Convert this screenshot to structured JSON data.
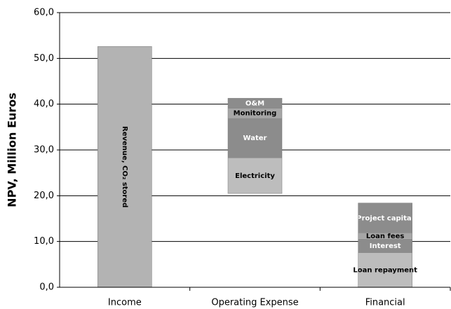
{
  "chart_data": {
    "type": "waterfall",
    "y_axis_label": "NPV, Million Euros",
    "ylim": [
      0,
      60
    ],
    "yticks": [
      {
        "value": 0,
        "label": "0,0"
      },
      {
        "value": 10,
        "label": "10,0"
      },
      {
        "value": 20,
        "label": "20,0"
      },
      {
        "value": 30,
        "label": "30,0"
      },
      {
        "value": 40,
        "label": "40,0"
      },
      {
        "value": 50,
        "label": "50,0"
      },
      {
        "value": 60,
        "label": "60,0"
      }
    ],
    "grid": true,
    "bars": [
      {
        "category": "Income",
        "base": 0,
        "segments": [
          {
            "name": "Revenue, CO₂ stored",
            "value": 52.6,
            "color": "#b3b3b3",
            "label_color": "#000000",
            "label_rotated": true
          }
        ]
      },
      {
        "category": "Operating Expense",
        "base": 20.5,
        "segments": [
          {
            "name": "Electricity",
            "value": 7.7,
            "color": "#bdbdbd",
            "label_color": "#000000"
          },
          {
            "name": "Water",
            "value": 8.8,
            "color": "#8c8c8c",
            "label_color": "#ffffff"
          },
          {
            "name": "Monitoring",
            "value": 2.0,
            "color": "#a6a6a6",
            "label_color": "#000000"
          },
          {
            "name": "O&M",
            "value": 2.3,
            "color": "#8c8c8c",
            "label_color": "#ffffff"
          }
        ]
      },
      {
        "category": "Financial",
        "base": 0,
        "segments": [
          {
            "name": "Loan repayment",
            "value": 7.5,
            "color": "#bdbdbd",
            "label_color": "#000000"
          },
          {
            "name": "Interest",
            "value": 3.1,
            "color": "#8c8c8c",
            "label_color": "#ffffff"
          },
          {
            "name": "Loan fees",
            "value": 1.2,
            "color": "#a6a6a6",
            "label_color": "#000000"
          },
          {
            "name": "Project capital",
            "value": 6.6,
            "color": "#8c8c8c",
            "label_color": "#ffffff"
          }
        ]
      }
    ]
  }
}
